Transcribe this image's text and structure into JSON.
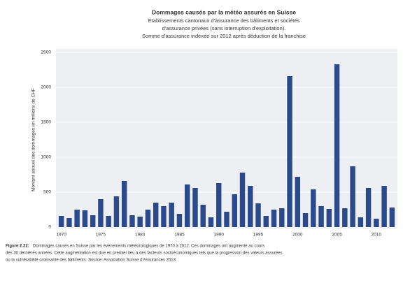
{
  "chart_data": {
    "type": "bar",
    "title": "Dommages causés par la météo assurés en Suisse",
    "subtitle": [
      "Établissements cantonaux d'assurance des bâtiments et sociétés",
      "d'assurance privées (sans interruption d'exploitation).",
      "Somme d'assurance indexée sur 2012 après déduction de la franchise"
    ],
    "y_label": "Montant annuel des dommages en millions de CHF",
    "categories": [
      "1970",
      null,
      null,
      null,
      null,
      "1975",
      null,
      null,
      null,
      null,
      "1980",
      null,
      null,
      null,
      null,
      "1985",
      null,
      null,
      null,
      null,
      "1990",
      null,
      null,
      null,
      null,
      "1995",
      null,
      null,
      null,
      null,
      "2000",
      null,
      null,
      null,
      null,
      "2005",
      null,
      null,
      null,
      null,
      "2010",
      null,
      null
    ],
    "values": [
      160,
      130,
      250,
      240,
      170,
      400,
      160,
      440,
      660,
      170,
      150,
      250,
      350,
      300,
      350,
      190,
      610,
      560,
      320,
      140,
      630,
      220,
      470,
      780,
      590,
      340,
      160,
      250,
      270,
      2160,
      720,
      200,
      540,
      300,
      260,
      2330,
      270,
      870,
      140,
      560,
      120,
      590,
      280
    ],
    "color": "#2b4a8b",
    "ylim": [
      0,
      2500
    ],
    "yticks": [
      0,
      500,
      1000,
      1500,
      2000,
      2500
    ],
    "grid": true,
    "caption_label": "Figure 2.22:",
    "caption": [
      "Dommages causés en Suisse par les événements météorologiques de 1970 à 2012. Ces dommages ont augmenté au cours",
      "des 30 dernières années. Cette augmentation est due en premier lieu à des facteurs socioéconomiques tels que la progression des valeurs assurées",
      "ou la vulnérabilité croissante des bâtiments. Source: Association Suisse d'Assurances 2013"
    ]
  }
}
